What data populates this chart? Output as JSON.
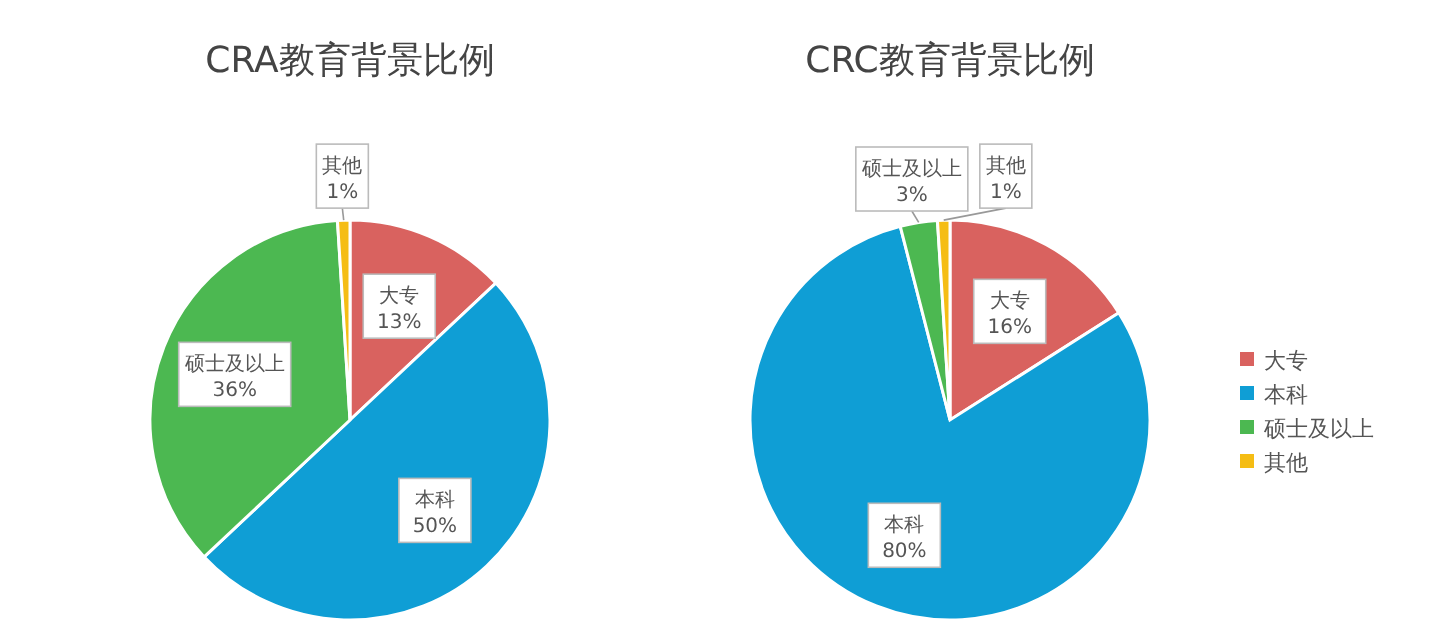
{
  "chart_data": [
    {
      "type": "pie",
      "title": "CRA教育背景比例",
      "categories": [
        "大专",
        "本科",
        "硕士及以上",
        "其他"
      ],
      "values": [
        13,
        50,
        36,
        1
      ],
      "colors": [
        "#d9625f",
        "#0f9ed5",
        "#4cb851",
        "#f5bd14"
      ],
      "value_labels": [
        "13%",
        "50%",
        "36%",
        "1%"
      ],
      "legend": false
    },
    {
      "type": "pie",
      "title": "CRC教育背景比例",
      "categories": [
        "大专",
        "本科",
        "硕士及以上",
        "其他"
      ],
      "values": [
        16,
        80,
        3,
        1
      ],
      "colors": [
        "#d9625f",
        "#0f9ed5",
        "#4cb851",
        "#f5bd14"
      ],
      "value_labels": [
        "16%",
        "80%",
        "3%",
        "1%"
      ],
      "legend": "right"
    }
  ]
}
